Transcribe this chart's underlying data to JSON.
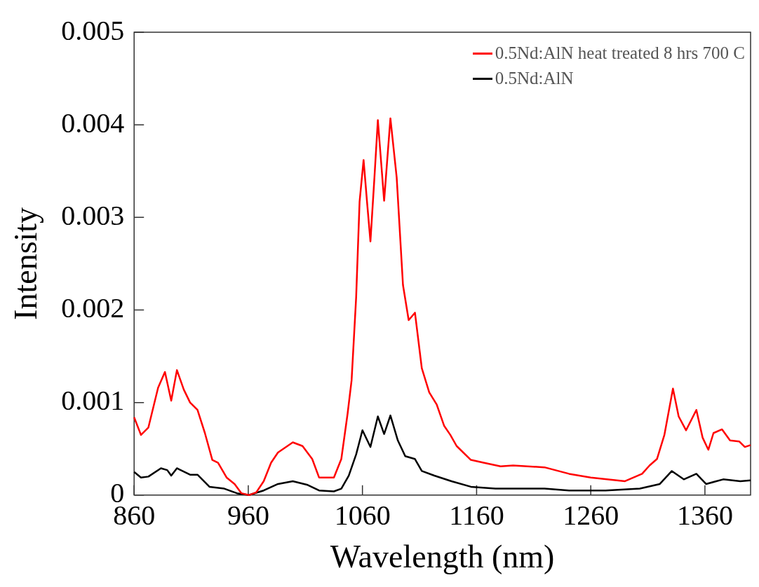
{
  "chart_data": {
    "type": "line",
    "xlabel": "Wavelength (nm)",
    "ylabel": "Intensity",
    "xlim": [
      860,
      1400
    ],
    "xticks": [
      860,
      960,
      1060,
      1160,
      1260,
      1360
    ],
    "ylim": [
      0,
      0.005
    ],
    "yticks": [
      0,
      0.001,
      0.002,
      0.003,
      0.004,
      0.005
    ],
    "grid": false,
    "legend": "top right",
    "marker": "none",
    "line_style": "solid",
    "series": [
      {
        "name": "0.5Nd:AlN heat treated 8 hrs 700 C",
        "color": "#ff0000",
        "x": [
          860,
          866,
          872.5,
          881,
          887,
          892.5,
          897.5,
          903.5,
          909,
          915.5,
          922,
          928.5,
          933.5,
          941,
          948,
          954,
          960.5,
          967,
          973.5,
          980,
          986,
          999,
          1007.5,
          1016,
          1022,
          1035,
          1041.5,
          1047,
          1050.5,
          1054.5,
          1057.5,
          1061,
          1064,
          1067,
          1070.5,
          1073.5,
          1079,
          1084.5,
          1090,
          1095.5,
          1100.5,
          1106,
          1112,
          1118.5,
          1125,
          1131.5,
          1137,
          1142.5,
          1155,
          1166,
          1181,
          1192,
          1219.5,
          1241,
          1260,
          1290,
          1305,
          1311.5,
          1318,
          1324.5,
          1332,
          1337,
          1343.5,
          1352.5,
          1358,
          1363,
          1367.5,
          1375,
          1382,
          1390,
          1395,
          1400
        ],
        "values": [
          0.00084,
          0.00065,
          0.00073,
          0.00116,
          0.00133,
          0.00102,
          0.00135,
          0.00114,
          0.001,
          0.00092,
          0.00067,
          0.00038,
          0.00035,
          0.00019,
          0.00012,
          2e-05,
          0,
          3e-05,
          0.00015,
          0.00035,
          0.00046,
          0.00057,
          0.00053,
          0.00039,
          0.00019,
          0.00019,
          0.00039,
          0.00088,
          0.00124,
          0.00214,
          0.00317,
          0.00362,
          0.00317,
          0.00274,
          0.00343,
          0.00405,
          0.00318,
          0.00407,
          0.00343,
          0.00227,
          0.00189,
          0.00197,
          0.00137,
          0.00111,
          0.00098,
          0.00075,
          0.00065,
          0.00053,
          0.00038,
          0.00035,
          0.00031,
          0.00032,
          0.0003,
          0.00023,
          0.00019,
          0.00015,
          0.00023,
          0.00032,
          0.00039,
          0.00065,
          0.00115,
          0.00085,
          0.0007,
          0.00092,
          0.00062,
          0.00049,
          0.00067,
          0.00071,
          0.00059,
          0.00058,
          0.00052,
          0.00054
        ]
      },
      {
        "name": "0.5Nd:AlN",
        "color": "#000000",
        "x": [
          860,
          866,
          872.5,
          883.5,
          889,
          892.5,
          897.5,
          909,
          915.5,
          926,
          939,
          950,
          960.5,
          973.5,
          986,
          999,
          1012,
          1022,
          1035,
          1041.5,
          1048,
          1054.5,
          1060,
          1067,
          1073.5,
          1079,
          1084.5,
          1091,
          1097.5,
          1106,
          1112,
          1123,
          1138,
          1155,
          1176.5,
          1219.5,
          1241,
          1273,
          1303,
          1320.5,
          1331,
          1341.5,
          1352.5,
          1361,
          1376,
          1391,
          1400
        ],
        "values": [
          0.00025,
          0.00019,
          0.0002,
          0.00029,
          0.00027,
          0.00021,
          0.00029,
          0.00022,
          0.00022,
          9e-05,
          7e-05,
          2e-05,
          0,
          5e-05,
          0.00012,
          0.00015,
          0.00011,
          5e-05,
          4e-05,
          7e-05,
          0.00021,
          0.00044,
          0.0007,
          0.00052,
          0.00085,
          0.00066,
          0.00086,
          0.00059,
          0.00042,
          0.00039,
          0.00026,
          0.00021,
          0.00015,
          9e-05,
          7e-05,
          7e-05,
          5e-05,
          5e-05,
          7e-05,
          0.00012,
          0.00026,
          0.00017,
          0.00023,
          0.00012,
          0.00017,
          0.00015,
          0.00016
        ]
      }
    ]
  }
}
